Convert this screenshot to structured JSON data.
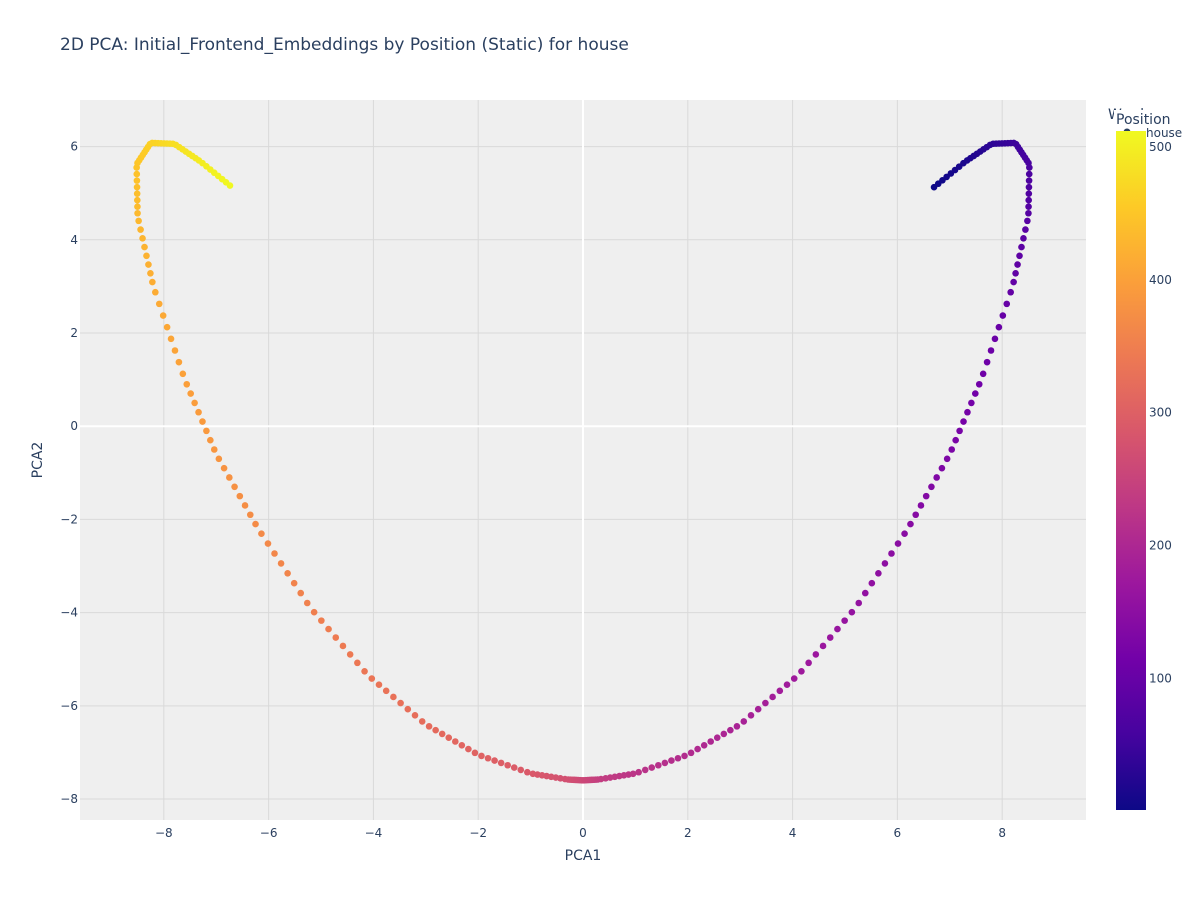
{
  "chart_data": {
    "type": "scatter",
    "title": "2D PCA: Initial_Frontend_Embeddings by Position (Static) for house",
    "xlabel": "PCA1",
    "ylabel": "PCA2",
    "xlim": [
      -9.6,
      9.6
    ],
    "ylim": [
      -8.45,
      7.0
    ],
    "x_ticks": [
      -8,
      -6,
      -4,
      -2,
      0,
      2,
      4,
      6,
      8
    ],
    "x_tick_labels": [
      "−8",
      "−6",
      "−4",
      "−2",
      "0",
      "2",
      "4",
      "6",
      "8"
    ],
    "y_ticks": [
      -8,
      -6,
      -4,
      -2,
      0,
      2,
      4,
      6
    ],
    "y_tick_labels": [
      "−8",
      "−6",
      "−4",
      "−2",
      "0",
      "2",
      "4",
      "6"
    ],
    "grid": true,
    "legend": {
      "title": "Word",
      "entries": [
        "house"
      ],
      "placement": "top-right"
    },
    "colorbar": {
      "title": "Position",
      "min": 1,
      "max": 512,
      "ticks": [
        100,
        200,
        300,
        400,
        500
      ],
      "tick_labels": [
        "100",
        "200",
        "300",
        "400",
        "500"
      ],
      "colorscale": [
        "#0d0887",
        "#46039f",
        "#7201a8",
        "#9c179e",
        "#bd3786",
        "#d8576b",
        "#ed7953",
        "#fb9f3a",
        "#fdca26",
        "#f0f921"
      ]
    },
    "series": [
      {
        "name": "house",
        "color_by": "position",
        "points": [
          {
            "position": 1,
            "x": 6.7,
            "y": 5.13
          },
          {
            "position": 16,
            "x": 7.3,
            "y": 5.68
          },
          {
            "position": 32,
            "x": 7.8,
            "y": 6.06
          },
          {
            "position": 48,
            "x": 8.25,
            "y": 6.08
          },
          {
            "position": 64,
            "x": 8.52,
            "y": 5.62
          },
          {
            "position": 80,
            "x": 8.5,
            "y": 4.5
          },
          {
            "position": 96,
            "x": 8.2,
            "y": 3.0
          },
          {
            "position": 112,
            "x": 7.6,
            "y": 1.0
          },
          {
            "position": 128,
            "x": 7.0,
            "y": -0.6
          },
          {
            "position": 144,
            "x": 6.2,
            "y": -2.2
          },
          {
            "position": 160,
            "x": 5.2,
            "y": -3.9
          },
          {
            "position": 176,
            "x": 4.1,
            "y": -5.35
          },
          {
            "position": 192,
            "x": 3.0,
            "y": -6.4
          },
          {
            "position": 208,
            "x": 2.0,
            "y": -7.05
          },
          {
            "position": 224,
            "x": 1.0,
            "y": -7.45
          },
          {
            "position": 240,
            "x": 0.3,
            "y": -7.58
          },
          {
            "position": 256,
            "x": 0.0,
            "y": -7.6
          },
          {
            "position": 272,
            "x": -0.3,
            "y": -7.58
          },
          {
            "position": 288,
            "x": -1.0,
            "y": -7.45
          },
          {
            "position": 304,
            "x": -2.0,
            "y": -7.05
          },
          {
            "position": 320,
            "x": -3.0,
            "y": -6.4
          },
          {
            "position": 336,
            "x": -4.1,
            "y": -5.35
          },
          {
            "position": 352,
            "x": -5.2,
            "y": -3.9
          },
          {
            "position": 368,
            "x": -6.2,
            "y": -2.2
          },
          {
            "position": 384,
            "x": -7.0,
            "y": -0.6
          },
          {
            "position": 400,
            "x": -7.6,
            "y": 1.0
          },
          {
            "position": 416,
            "x": -8.2,
            "y": 3.0
          },
          {
            "position": 432,
            "x": -8.5,
            "y": 4.5
          },
          {
            "position": 448,
            "x": -8.52,
            "y": 5.62
          },
          {
            "position": 464,
            "x": -8.25,
            "y": 6.08
          },
          {
            "position": 480,
            "x": -7.8,
            "y": 6.06
          },
          {
            "position": 496,
            "x": -7.3,
            "y": 5.68
          },
          {
            "position": 512,
            "x": -6.7,
            "y": 5.13
          }
        ]
      }
    ]
  }
}
